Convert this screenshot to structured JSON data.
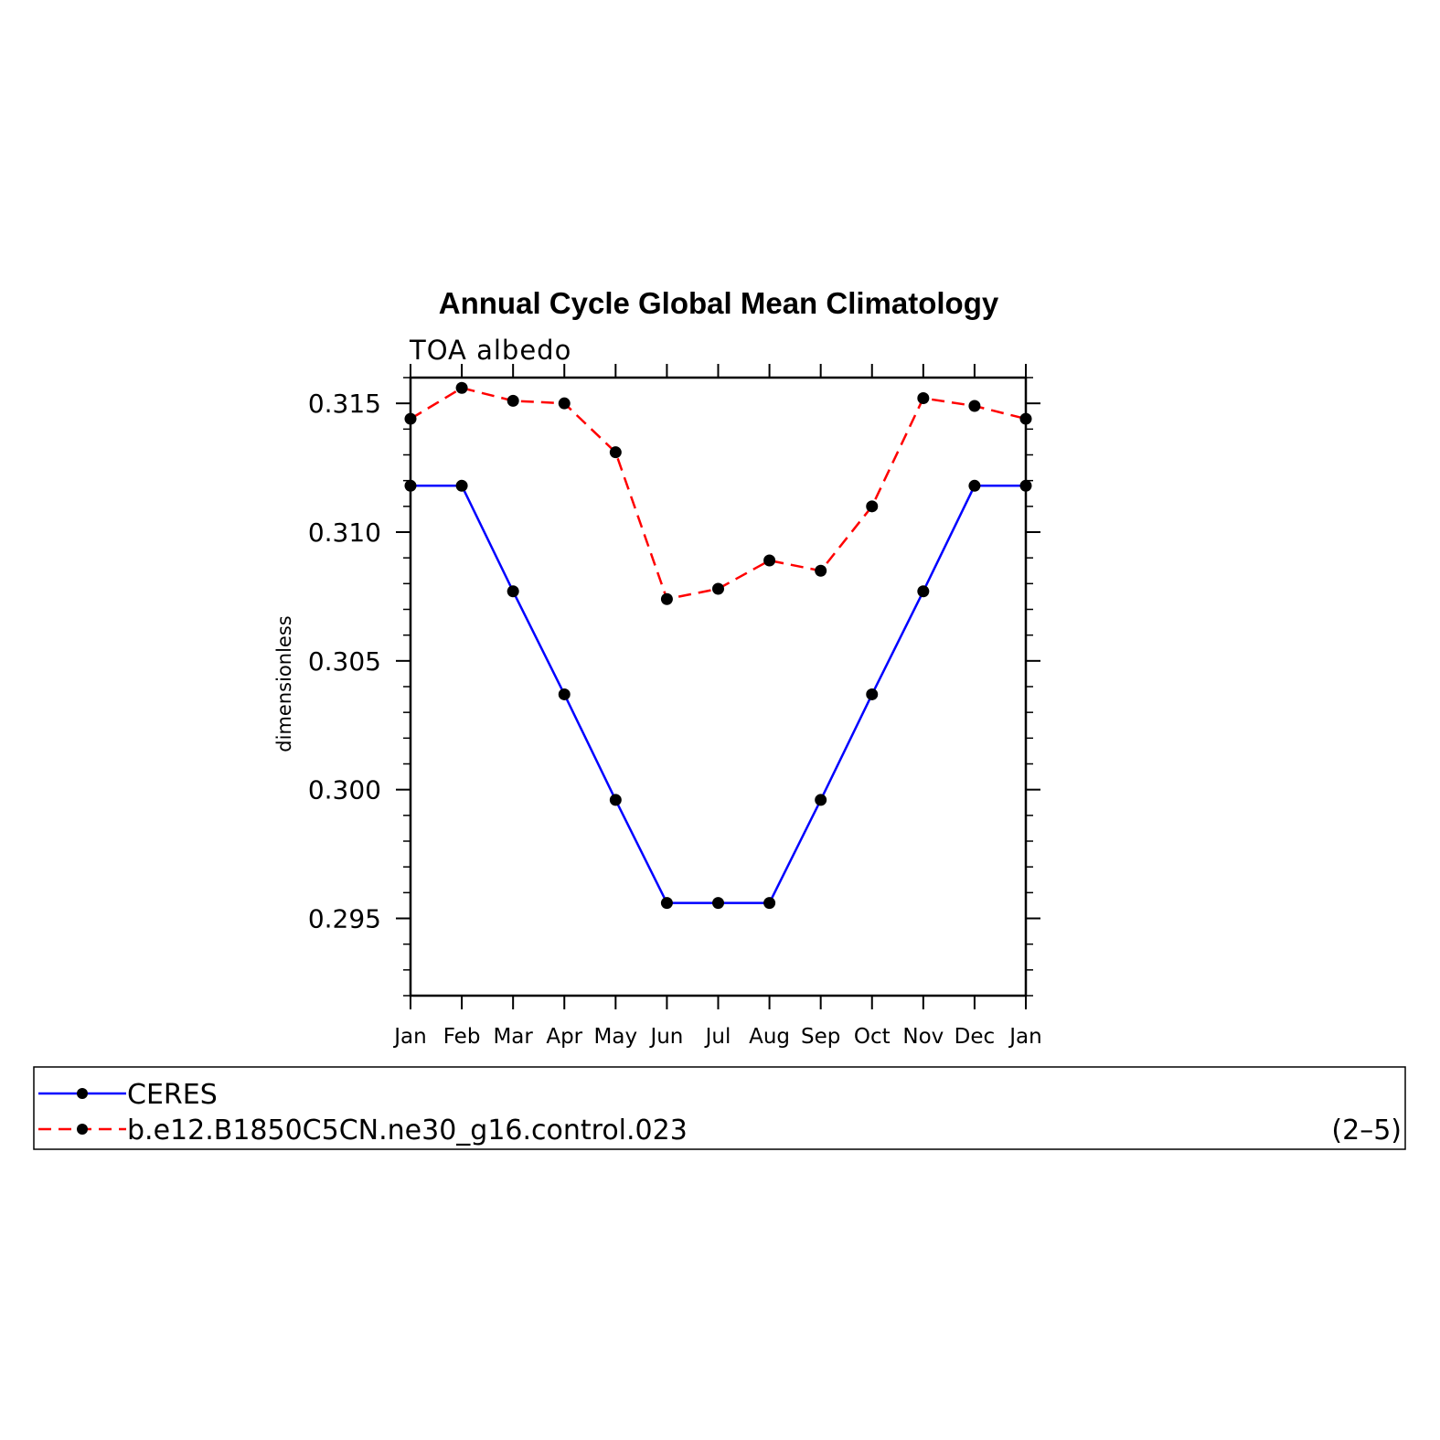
{
  "chart_data": {
    "type": "line",
    "title": "Annual Cycle Global Mean Climatology",
    "subtitle": "TOA albedo",
    "ylabel": "dimensionless",
    "xlabel": "",
    "categories": [
      "Jan",
      "Feb",
      "Mar",
      "Apr",
      "May",
      "Jun",
      "Jul",
      "Aug",
      "Sep",
      "Oct",
      "Nov",
      "Dec",
      "Jan"
    ],
    "yticks": [
      "0.295",
      "0.300",
      "0.305",
      "0.310",
      "0.315"
    ],
    "ylim": [
      0.292,
      0.316
    ],
    "grid": false,
    "legend_position": "bottom",
    "panel_label": "(2–5)",
    "series": [
      {
        "name": "CERES",
        "color": "#0000ff",
        "dash": "solid",
        "marker": "dot",
        "values": [
          0.3118,
          0.3118,
          0.3077,
          0.3037,
          0.2996,
          0.2956,
          0.2956,
          0.2956,
          0.2996,
          0.3037,
          0.3077,
          0.3118,
          0.3118
        ]
      },
      {
        "name": "b.e12.B1850C5CN.ne30_g16.control.023",
        "color": "#ff0000",
        "dash": "dashed",
        "marker": "dot",
        "values": [
          0.3144,
          0.3156,
          0.3151,
          0.315,
          0.3131,
          0.3074,
          0.3078,
          0.3089,
          0.3085,
          0.311,
          0.3152,
          0.3149,
          0.3144
        ]
      }
    ]
  }
}
